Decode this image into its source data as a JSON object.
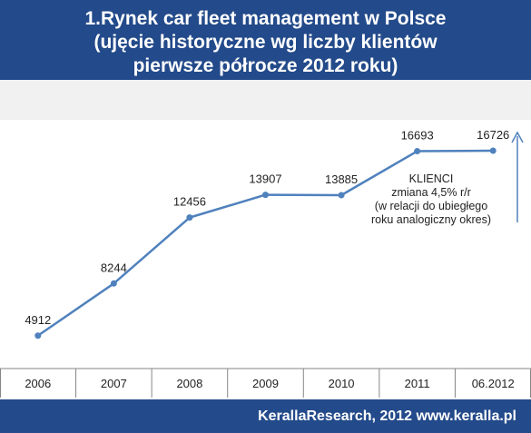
{
  "header": {
    "title_line1": "1.Rynek car fleet management w Polsce",
    "title_line2": "(ujęcie historyczne wg liczby klientów",
    "title_line3": "pierwsze półrocze 2012 roku)"
  },
  "footer": {
    "credit": "KerallaResearch, 2012 www.keralla.pl"
  },
  "colors": {
    "header_bg": "#234a8a",
    "line": "#4f81bd",
    "band": "#f1f1f1"
  },
  "chart_data": {
    "type": "line",
    "categories": [
      "2006",
      "2007",
      "2008",
      "2009",
      "2010",
      "2011",
      "06.2012"
    ],
    "values": [
      4912,
      8244,
      12456,
      13907,
      13885,
      16693,
      16726
    ],
    "ylim": [
      2000,
      18000
    ],
    "grid": false,
    "annotation": {
      "lines": [
        "KLIENCI",
        "zmiana 4,5% r/r",
        "(w relacji do ubiegłego",
        "roku analogiczny okres)"
      ],
      "arrow": "up"
    }
  }
}
